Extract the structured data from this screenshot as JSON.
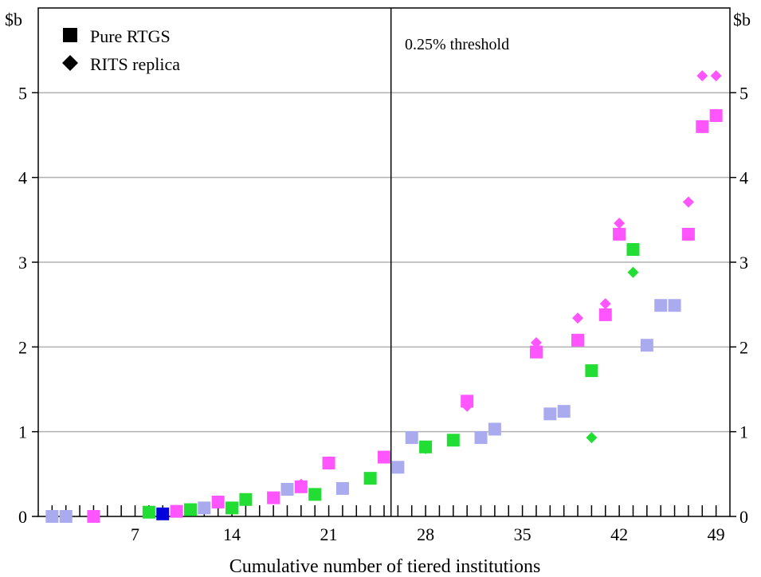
{
  "chart_data": {
    "type": "scatter",
    "title": "",
    "xlabel": "Cumulative number of tiered institutions",
    "ylabel_left": "$b",
    "ylabel_right": "$b",
    "xlim": [
      0,
      50
    ],
    "ylim": [
      0,
      6
    ],
    "x_ticks": [
      7,
      14,
      21,
      28,
      35,
      42,
      49
    ],
    "y_ticks": [
      0,
      1,
      2,
      3,
      4,
      5
    ],
    "grid": "horizontal",
    "legend": {
      "placement": "top-left",
      "entries": [
        {
          "label": "Pure RTGS",
          "marker": "square"
        },
        {
          "label": "RITS replica",
          "marker": "diamond"
        }
      ]
    },
    "threshold_line": {
      "x": 25.5,
      "label": "0.25% threshold"
    },
    "colors": {
      "pink": "#ff55ff",
      "green": "#22dd33",
      "lavender": "#aaaaee",
      "blue": "#0000dd",
      "legend": "#000000",
      "grid": "#b0b0b0"
    },
    "series": [
      {
        "marker": "diamond",
        "points": [
          {
            "x": 1,
            "y": 0.0,
            "c": "lavender"
          },
          {
            "x": 2,
            "y": 0.0,
            "c": "lavender"
          },
          {
            "x": 4,
            "y": 0.0,
            "c": "pink"
          },
          {
            "x": 8,
            "y": 0.05,
            "c": "green"
          },
          {
            "x": 9,
            "y": 0.03,
            "c": "blue"
          },
          {
            "x": 10,
            "y": 0.06,
            "c": "pink"
          },
          {
            "x": 11,
            "y": 0.08,
            "c": "green"
          },
          {
            "x": 12,
            "y": 0.1,
            "c": "lavender"
          },
          {
            "x": 13,
            "y": 0.18,
            "c": "pink"
          },
          {
            "x": 14,
            "y": 0.1,
            "c": "green"
          },
          {
            "x": 15,
            "y": 0.2,
            "c": "green"
          },
          {
            "x": 17,
            "y": 0.22,
            "c": "pink"
          },
          {
            "x": 18,
            "y": 0.32,
            "c": "lavender"
          },
          {
            "x": 19,
            "y": 0.38,
            "c": "pink"
          },
          {
            "x": 20,
            "y": 0.26,
            "c": "green"
          },
          {
            "x": 21,
            "y": 0.63,
            "c": "pink"
          },
          {
            "x": 22,
            "y": 0.33,
            "c": "lavender"
          },
          {
            "x": 24,
            "y": 0.45,
            "c": "green"
          },
          {
            "x": 25,
            "y": 0.7,
            "c": "pink"
          },
          {
            "x": 26,
            "y": 0.58,
            "c": "lavender"
          },
          {
            "x": 27,
            "y": 0.93,
            "c": "lavender"
          },
          {
            "x": 28,
            "y": 0.8,
            "c": "green"
          },
          {
            "x": 30,
            "y": 0.9,
            "c": "green"
          },
          {
            "x": 31,
            "y": 1.3,
            "c": "pink"
          },
          {
            "x": 32,
            "y": 0.93,
            "c": "lavender"
          },
          {
            "x": 33,
            "y": 1.03,
            "c": "lavender"
          },
          {
            "x": 36,
            "y": 2.05,
            "c": "pink"
          },
          {
            "x": 37,
            "y": 1.21,
            "c": "lavender"
          },
          {
            "x": 38,
            "y": 1.24,
            "c": "lavender"
          },
          {
            "x": 39,
            "y": 2.34,
            "c": "pink"
          },
          {
            "x": 40,
            "y": 0.93,
            "c": "green"
          },
          {
            "x": 41,
            "y": 2.51,
            "c": "pink"
          },
          {
            "x": 42,
            "y": 3.46,
            "c": "pink"
          },
          {
            "x": 43,
            "y": 2.88,
            "c": "green"
          },
          {
            "x": 44,
            "y": 2.02,
            "c": "lavender"
          },
          {
            "x": 45,
            "y": 2.49,
            "c": "lavender"
          },
          {
            "x": 46,
            "y": 2.49,
            "c": "lavender"
          },
          {
            "x": 47,
            "y": 3.71,
            "c": "pink"
          },
          {
            "x": 48,
            "y": 5.2,
            "c": "pink"
          },
          {
            "x": 49,
            "y": 5.2,
            "c": "pink"
          }
        ]
      },
      {
        "marker": "square",
        "points": [
          {
            "x": 1,
            "y": 0.0,
            "c": "lavender"
          },
          {
            "x": 2,
            "y": 0.0,
            "c": "lavender"
          },
          {
            "x": 4,
            "y": 0.0,
            "c": "pink"
          },
          {
            "x": 8,
            "y": 0.05,
            "c": "green"
          },
          {
            "x": 9,
            "y": 0.03,
            "c": "blue"
          },
          {
            "x": 10,
            "y": 0.06,
            "c": "pink"
          },
          {
            "x": 11,
            "y": 0.08,
            "c": "green"
          },
          {
            "x": 12,
            "y": 0.1,
            "c": "lavender"
          },
          {
            "x": 13,
            "y": 0.17,
            "c": "pink"
          },
          {
            "x": 14,
            "y": 0.1,
            "c": "green"
          },
          {
            "x": 15,
            "y": 0.2,
            "c": "green"
          },
          {
            "x": 17,
            "y": 0.22,
            "c": "pink"
          },
          {
            "x": 18,
            "y": 0.32,
            "c": "lavender"
          },
          {
            "x": 19,
            "y": 0.35,
            "c": "pink"
          },
          {
            "x": 20,
            "y": 0.26,
            "c": "green"
          },
          {
            "x": 21,
            "y": 0.63,
            "c": "pink"
          },
          {
            "x": 22,
            "y": 0.33,
            "c": "lavender"
          },
          {
            "x": 24,
            "y": 0.45,
            "c": "green"
          },
          {
            "x": 25,
            "y": 0.7,
            "c": "pink"
          },
          {
            "x": 26,
            "y": 0.58,
            "c": "lavender"
          },
          {
            "x": 27,
            "y": 0.93,
            "c": "lavender"
          },
          {
            "x": 28,
            "y": 0.82,
            "c": "green"
          },
          {
            "x": 30,
            "y": 0.9,
            "c": "green"
          },
          {
            "x": 31,
            "y": 1.36,
            "c": "pink"
          },
          {
            "x": 32,
            "y": 0.93,
            "c": "lavender"
          },
          {
            "x": 33,
            "y": 1.03,
            "c": "lavender"
          },
          {
            "x": 36,
            "y": 1.94,
            "c": "pink"
          },
          {
            "x": 37,
            "y": 1.21,
            "c": "lavender"
          },
          {
            "x": 38,
            "y": 1.24,
            "c": "lavender"
          },
          {
            "x": 39,
            "y": 2.08,
            "c": "pink"
          },
          {
            "x": 40,
            "y": 1.72,
            "c": "green"
          },
          {
            "x": 41,
            "y": 2.38,
            "c": "pink"
          },
          {
            "x": 42,
            "y": 3.33,
            "c": "pink"
          },
          {
            "x": 43,
            "y": 3.15,
            "c": "green"
          },
          {
            "x": 44,
            "y": 2.02,
            "c": "lavender"
          },
          {
            "x": 45,
            "y": 2.49,
            "c": "lavender"
          },
          {
            "x": 46,
            "y": 2.49,
            "c": "lavender"
          },
          {
            "x": 47,
            "y": 3.33,
            "c": "pink"
          },
          {
            "x": 48,
            "y": 4.6,
            "c": "pink"
          },
          {
            "x": 49,
            "y": 4.73,
            "c": "pink"
          }
        ]
      }
    ]
  }
}
